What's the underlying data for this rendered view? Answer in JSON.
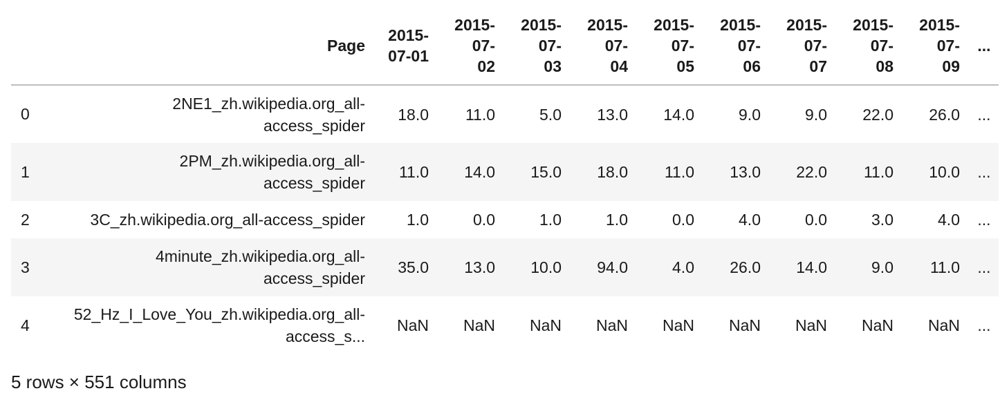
{
  "table": {
    "columns": [
      "Page",
      "2015-\n07-01",
      "2015-\n07-\n02",
      "2015-\n07-\n03",
      "2015-\n07-\n04",
      "2015-\n07-\n05",
      "2015-\n07-\n06",
      "2015-\n07-\n07",
      "2015-\n07-\n08",
      "2015-\n07-\n09",
      "..."
    ],
    "header_lines": [
      [
        "Page"
      ],
      [
        "2015-",
        "07-01"
      ],
      [
        "2015-",
        "07-",
        "02"
      ],
      [
        "2015-",
        "07-",
        "03"
      ],
      [
        "2015-",
        "07-",
        "04"
      ],
      [
        "2015-",
        "07-",
        "05"
      ],
      [
        "2015-",
        "07-",
        "06"
      ],
      [
        "2015-",
        "07-",
        "07"
      ],
      [
        "2015-",
        "07-",
        "08"
      ],
      [
        "2015-",
        "07-",
        "09"
      ],
      [
        "..."
      ]
    ],
    "rows": [
      {
        "index": "0",
        "page_lines": [
          "2NE1_zh.wikipedia.org_all-",
          "access_spider"
        ],
        "values": [
          "18.0",
          "11.0",
          "5.0",
          "13.0",
          "14.0",
          "9.0",
          "9.0",
          "22.0",
          "26.0",
          "..."
        ]
      },
      {
        "index": "1",
        "page_lines": [
          "2PM_zh.wikipedia.org_all-",
          "access_spider"
        ],
        "values": [
          "11.0",
          "14.0",
          "15.0",
          "18.0",
          "11.0",
          "13.0",
          "22.0",
          "11.0",
          "10.0",
          "..."
        ]
      },
      {
        "index": "2",
        "page_lines": [
          "3C_zh.wikipedia.org_all-access_spider"
        ],
        "values": [
          "1.0",
          "0.0",
          "1.0",
          "1.0",
          "0.0",
          "4.0",
          "0.0",
          "3.0",
          "4.0",
          "..."
        ]
      },
      {
        "index": "3",
        "page_lines": [
          "4minute_zh.wikipedia.org_all-",
          "access_spider"
        ],
        "values": [
          "35.0",
          "13.0",
          "10.0",
          "94.0",
          "4.0",
          "26.0",
          "14.0",
          "9.0",
          "11.0",
          "..."
        ]
      },
      {
        "index": "4",
        "page_lines": [
          "52_Hz_I_Love_You_zh.wikipedia.org_all-",
          "access_s..."
        ],
        "values": [
          "NaN",
          "NaN",
          "NaN",
          "NaN",
          "NaN",
          "NaN",
          "NaN",
          "NaN",
          "NaN",
          "..."
        ]
      }
    ]
  },
  "footer": "5 rows × 551 columns"
}
